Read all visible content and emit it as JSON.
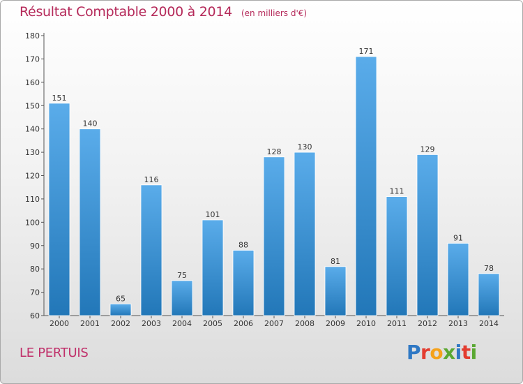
{
  "title": "Résultat Comptable 2000 à 2014",
  "unit": "(en milliers d'€)",
  "commune": "LE PERTUIS",
  "logo_text": "Proxiti",
  "colors": {
    "bar_top": "#5aacea",
    "bar_bottom": "#2277b8",
    "title": "#b52a5a",
    "commune": "#c0306a"
  },
  "chart_data": {
    "type": "bar",
    "title": "Résultat Comptable 2000 à 2014",
    "xlabel": "",
    "ylabel": "en milliers d'€",
    "categories": [
      "2000",
      "2001",
      "2002",
      "2003",
      "2004",
      "2005",
      "2006",
      "2007",
      "2008",
      "2009",
      "2010",
      "2011",
      "2012",
      "2013",
      "2014"
    ],
    "values": [
      151,
      140,
      65,
      116,
      75,
      101,
      88,
      128,
      130,
      81,
      171,
      111,
      129,
      91,
      78
    ],
    "ylim": [
      60,
      180
    ],
    "yticks": [
      60,
      70,
      80,
      90,
      100,
      110,
      120,
      130,
      140,
      150,
      160,
      170,
      180
    ],
    "grid": false,
    "legend": "none"
  }
}
